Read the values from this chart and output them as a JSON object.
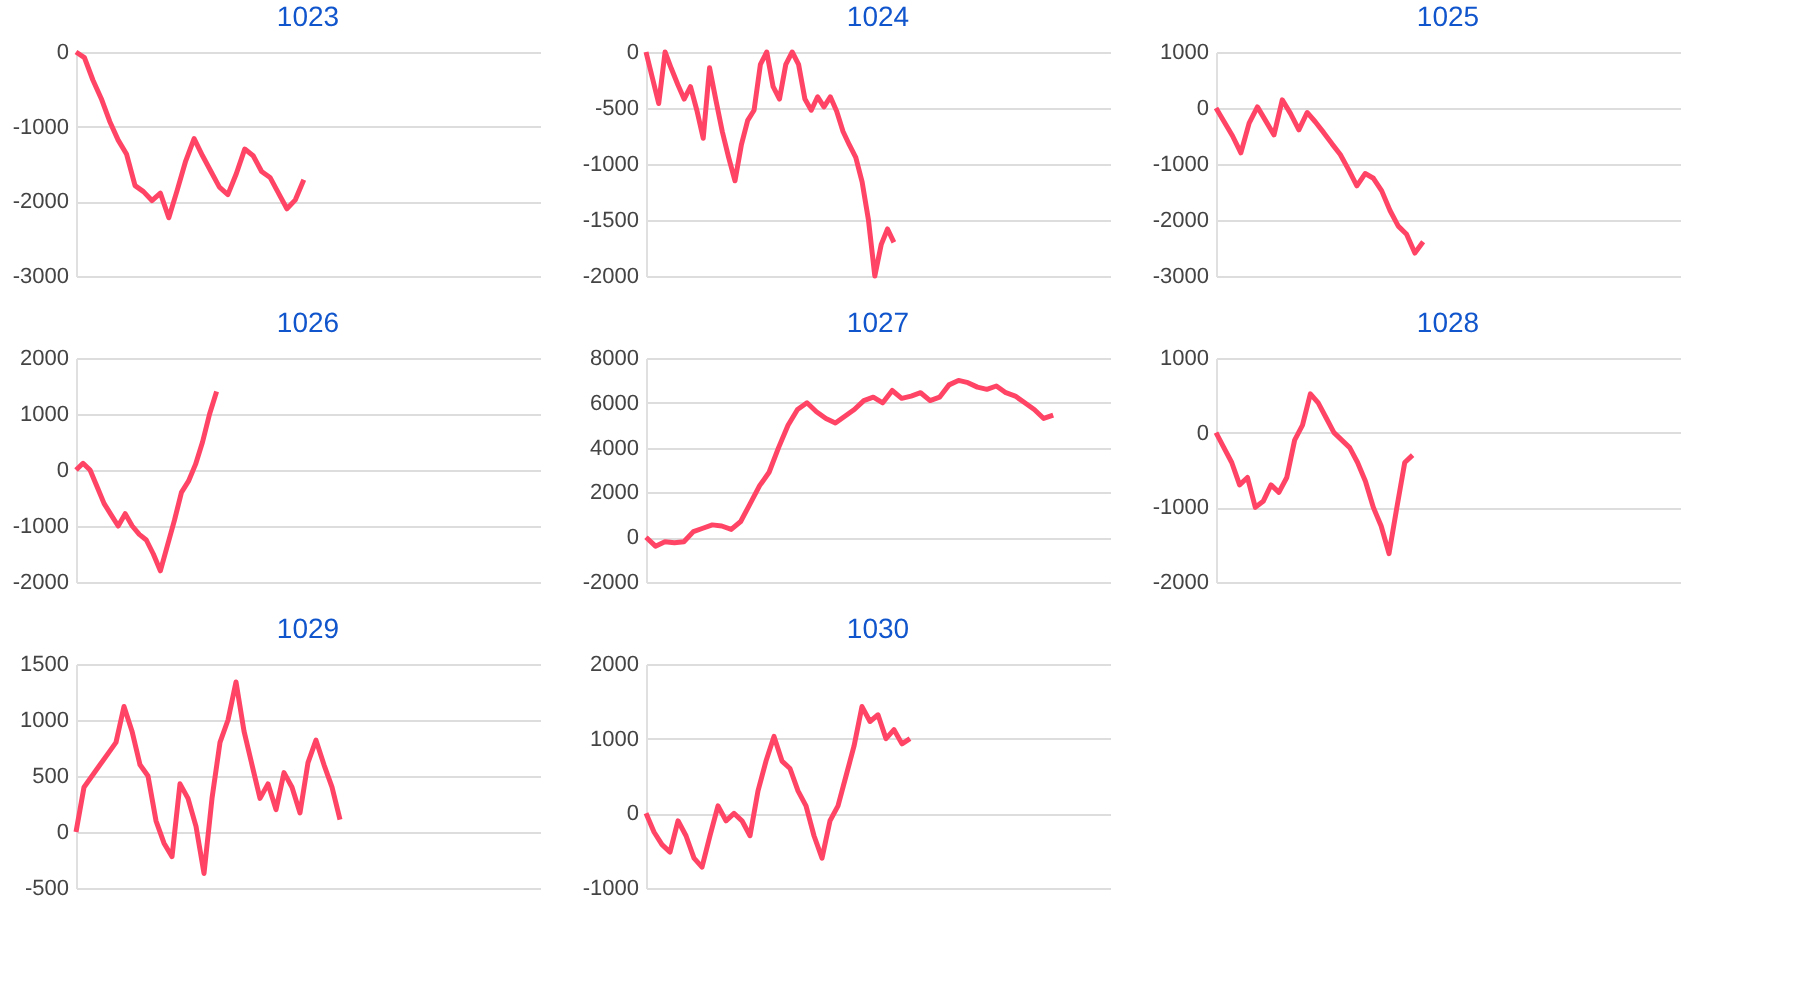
{
  "chart_data": [
    {
      "type": "line",
      "title": "1023",
      "categories": [
        null,
        null,
        null,
        null,
        null,
        null,
        null,
        null,
        null,
        null,
        null,
        null,
        null,
        null,
        null,
        null,
        null,
        null,
        null,
        null,
        null,
        null,
        null,
        null,
        null,
        null,
        null,
        null,
        null,
        null,
        null,
        null,
        null,
        null,
        null,
        null,
        null,
        null,
        null,
        null,
        null,
        null,
        null,
        null,
        null,
        null,
        null,
        null,
        null,
        null,
        null,
        null,
        null,
        null,
        null,
        null
      ],
      "series": [
        {
          "color": "#ff4466",
          "values": [
            0,
            -75,
            -375,
            -625,
            -930,
            -1180,
            -1370,
            -1790,
            -1870,
            -1990,
            -1890,
            -2220,
            -1850,
            -1460,
            -1160,
            -1390,
            -1600,
            -1810,
            -1910,
            -1630,
            -1300,
            -1390,
            -1600,
            -1680,
            -1890,
            -2100,
            -1980,
            -1710,
            null,
            null,
            null,
            null,
            null,
            null,
            null,
            null,
            null,
            null,
            null,
            null,
            null,
            null,
            null,
            null,
            null,
            null,
            null,
            null,
            null,
            null,
            null,
            null,
            null,
            null,
            null,
            null
          ]
        }
      ],
      "ylim": [
        -3000,
        0
      ],
      "yticks": [
        -3000,
        -2000,
        -1000,
        0
      ],
      "grid": "y",
      "tick_labels": "y"
    },
    {
      "type": "line",
      "title": "1024",
      "categories": [
        null,
        null,
        null,
        null,
        null,
        null,
        null,
        null,
        null,
        null,
        null,
        null,
        null,
        null,
        null,
        null,
        null,
        null,
        null,
        null,
        null,
        null,
        null,
        null,
        null,
        null,
        null,
        null,
        null,
        null,
        null,
        null,
        null,
        null,
        null,
        null,
        null,
        null,
        null,
        null,
        null,
        null,
        null,
        null,
        null,
        null,
        null,
        null,
        null,
        null,
        null,
        null,
        null,
        null,
        null,
        null,
        null,
        null,
        null,
        null,
        null,
        null,
        null,
        null,
        null,
        null,
        null,
        null,
        null,
        null,
        null,
        null,
        null,
        null
      ],
      "series": [
        {
          "color": "#ff4466",
          "values": [
            0,
            -230,
            -460,
            0,
            -150,
            -290,
            -420,
            -310,
            -520,
            -770,
            -140,
            -430,
            -710,
            -940,
            -1150,
            -830,
            -610,
            -520,
            -110,
            0,
            -310,
            -420,
            -110,
            0,
            -110,
            -420,
            -520,
            -400,
            -490,
            -400,
            -530,
            -710,
            -830,
            -940,
            -1160,
            -1500,
            -2000,
            -1720,
            -1580,
            -1700,
            null,
            null,
            null,
            null,
            null,
            null,
            null,
            null,
            null,
            null,
            null,
            null,
            null,
            null,
            null,
            null,
            null,
            null,
            null,
            null,
            null,
            null,
            null,
            null,
            null,
            null,
            null,
            null,
            null,
            null,
            null,
            null,
            null,
            null
          ]
        }
      ],
      "ylim": [
        -2000,
        0
      ],
      "yticks": [
        -2000,
        -1500,
        -1000,
        -500,
        0
      ],
      "grid": "y",
      "tick_labels": "y"
    },
    {
      "type": "line",
      "title": "1025",
      "categories": [
        null,
        null,
        null,
        null,
        null,
        null,
        null,
        null,
        null,
        null,
        null,
        null,
        null,
        null,
        null,
        null,
        null,
        null,
        null,
        null,
        null,
        null,
        null,
        null,
        null,
        null,
        null,
        null,
        null,
        null,
        null,
        null,
        null,
        null,
        null,
        null,
        null,
        null,
        null,
        null,
        null,
        null,
        null,
        null,
        null,
        null,
        null,
        null,
        null,
        null,
        null,
        null,
        null,
        null,
        null,
        null,
        null
      ],
      "series": [
        {
          "color": "#ff4466",
          "values": [
            0,
            -250,
            -500,
            -800,
            -270,
            20,
            -230,
            -480,
            145,
            -100,
            -390,
            -80,
            -250,
            -440,
            -640,
            -830,
            -1100,
            -1390,
            -1170,
            -1255,
            -1480,
            -1830,
            -2110,
            -2255,
            -2590,
            -2390,
            null,
            null,
            null,
            null,
            null,
            null,
            null,
            null,
            null,
            null,
            null,
            null,
            null,
            null,
            null,
            null,
            null,
            null,
            null,
            null,
            null,
            null,
            null,
            null,
            null,
            null,
            null,
            null,
            null,
            null,
            null
          ]
        }
      ],
      "ylim": [
        -3000,
        1000
      ],
      "yticks": [
        -3000,
        -2000,
        -1000,
        0,
        1000
      ],
      "grid": "y",
      "tick_labels": "y"
    },
    {
      "type": "line",
      "title": "1026",
      "categories": [
        null,
        null,
        null,
        null,
        null,
        null,
        null,
        null,
        null,
        null,
        null,
        null,
        null,
        null,
        null,
        null,
        null,
        null,
        null,
        null,
        null,
        null,
        null,
        null,
        null,
        null,
        null,
        null,
        null,
        null,
        null,
        null,
        null,
        null,
        null,
        null,
        null,
        null,
        null,
        null,
        null,
        null,
        null,
        null,
        null,
        null,
        null,
        null,
        null,
        null,
        null,
        null,
        null,
        null,
        null,
        null,
        null,
        null,
        null,
        null,
        null,
        null,
        null,
        null,
        null,
        null,
        null
      ],
      "series": [
        {
          "color": "#ff4466",
          "values": [
            0,
            120,
            0,
            -300,
            -600,
            -800,
            -1000,
            -780,
            -1000,
            -1150,
            -1250,
            -1500,
            -1800,
            -1350,
            -900,
            -400,
            -200,
            100,
            500,
            1000,
            1400,
            null,
            null,
            null,
            null,
            null,
            null,
            null,
            null,
            null,
            null,
            null,
            null,
            null,
            null,
            null,
            null,
            null,
            null,
            null,
            null,
            null,
            null,
            null,
            null,
            null,
            null,
            null,
            null,
            null,
            null,
            null,
            null,
            null,
            null,
            null,
            null,
            null,
            null,
            null,
            null,
            null,
            null,
            null,
            null,
            null,
            null
          ]
        }
      ],
      "ylim": [
        -2000,
        2000
      ],
      "yticks": [
        -2000,
        -1000,
        0,
        1000,
        2000
      ],
      "grid": "y",
      "tick_labels": "y"
    },
    {
      "type": "line",
      "title": "1027",
      "categories": [
        null,
        null,
        null,
        null,
        null,
        null,
        null,
        null,
        null,
        null,
        null,
        null,
        null,
        null,
        null,
        null,
        null,
        null,
        null,
        null,
        null,
        null,
        null,
        null,
        null,
        null,
        null,
        null,
        null,
        null,
        null,
        null,
        null,
        null,
        null,
        null,
        null,
        null,
        null,
        null,
        null,
        null,
        null,
        null,
        null,
        null,
        null,
        null,
        null,
        null
      ],
      "series": [
        {
          "color": "#ff4466",
          "values": [
            0,
            -400,
            -200,
            -250,
            -200,
            250,
            400,
            550,
            500,
            350,
            700,
            1500,
            2300,
            2900,
            4000,
            5000,
            5700,
            6000,
            5600,
            5300,
            5100,
            5400,
            5700,
            6100,
            6250,
            6000,
            6550,
            6200,
            6300,
            6450,
            6100,
            6250,
            6800,
            7000,
            6900,
            6700,
            6600,
            6750,
            6450,
            6300,
            6000,
            5700,
            5300,
            5450,
            null,
            null,
            null,
            null,
            null,
            null
          ]
        }
      ],
      "ylim": [
        -2000,
        8000
      ],
      "yticks": [
        -2000,
        0,
        2000,
        4000,
        6000,
        8000
      ],
      "grid": "y",
      "tick_labels": "y"
    },
    {
      "type": "line",
      "title": "1028",
      "categories": [
        null,
        null,
        null,
        null,
        null,
        null,
        null,
        null,
        null,
        null,
        null,
        null,
        null,
        null,
        null,
        null,
        null,
        null,
        null,
        null,
        null,
        null,
        null,
        null,
        null,
        null,
        null,
        null,
        null,
        null,
        null,
        null,
        null,
        null,
        null,
        null,
        null,
        null,
        null,
        null,
        null,
        null,
        null,
        null,
        null,
        null,
        null,
        null,
        null,
        null,
        null,
        null,
        null,
        null,
        null,
        null,
        null,
        null,
        null,
        null
      ],
      "series": [
        {
          "color": "#ff4466",
          "values": [
            0,
            -200,
            -400,
            -700,
            -600,
            -1000,
            -920,
            -700,
            -800,
            -600,
            -100,
            100,
            520,
            400,
            200,
            0,
            -100,
            -200,
            -400,
            -650,
            -1000,
            -1250,
            -1620,
            -1000,
            -400,
            -300,
            null,
            null,
            null,
            null,
            null,
            null,
            null,
            null,
            null,
            null,
            null,
            null,
            null,
            null,
            null,
            null,
            null,
            null,
            null,
            null,
            null,
            null,
            null,
            null,
            null,
            null,
            null,
            null,
            null,
            null,
            null,
            null,
            null,
            null
          ]
        }
      ],
      "ylim": [
        -2000,
        1000
      ],
      "yticks": [
        -2000,
        -1000,
        0,
        1000
      ],
      "grid": "y",
      "tick_labels": "y"
    },
    {
      "type": "line",
      "title": "1029",
      "categories": [
        null,
        null,
        null,
        null,
        null,
        null,
        null,
        null,
        null,
        null,
        null,
        null,
        null,
        null,
        null,
        null,
        null,
        null,
        null,
        null,
        null,
        null,
        null,
        null,
        null,
        null,
        null,
        null,
        null,
        null,
        null,
        null,
        null,
        null,
        null,
        null,
        null,
        null,
        null,
        null,
        null,
        null,
        null,
        null,
        null,
        null,
        null,
        null,
        null,
        null,
        null,
        null,
        null,
        null,
        null,
        null,
        null,
        null,
        null
      ],
      "series": [
        {
          "color": "#ff4466",
          "values": [
            0,
            400,
            500,
            600,
            700,
            800,
            1120,
            900,
            600,
            500,
            100,
            -100,
            -220,
            430,
            300,
            50,
            -370,
            300,
            800,
            1000,
            1340,
            900,
            600,
            300,
            430,
            200,
            530,
            400,
            170,
            620,
            820,
            600,
            400,
            110,
            null,
            null,
            null,
            null,
            null,
            null,
            null,
            null,
            null,
            null,
            null,
            null,
            null,
            null,
            null,
            null,
            null,
            null,
            null,
            null,
            null,
            null,
            null,
            null,
            null
          ]
        }
      ],
      "ylim": [
        -500,
        1500
      ],
      "yticks": [
        -500,
        0,
        500,
        1000,
        1500
      ],
      "grid": "y",
      "tick_labels": "y"
    },
    {
      "type": "line",
      "title": "1030",
      "categories": [
        null,
        null,
        null,
        null,
        null,
        null,
        null,
        null,
        null,
        null,
        null,
        null,
        null,
        null,
        null,
        null,
        null,
        null,
        null,
        null,
        null,
        null,
        null,
        null,
        null,
        null,
        null,
        null,
        null,
        null,
        null,
        null,
        null,
        null,
        null,
        null,
        null,
        null,
        null,
        null,
        null,
        null,
        null,
        null,
        null,
        null,
        null,
        null,
        null,
        null,
        null,
        null,
        null,
        null,
        null,
        null,
        null,
        null,
        null
      ],
      "series": [
        {
          "color": "#ff4466",
          "values": [
            0,
            -250,
            -420,
            -520,
            -100,
            -300,
            -600,
            -720,
            -300,
            100,
            -100,
            0,
            -100,
            -300,
            300,
            700,
            1030,
            700,
            600,
            300,
            100,
            -300,
            -600,
            -100,
            100,
            500,
            900,
            1430,
            1230,
            1320,
            1000,
            1120,
            930,
            1000,
            null,
            null,
            null,
            null,
            null,
            null,
            null,
            null,
            null,
            null,
            null,
            null,
            null,
            null,
            null,
            null,
            null,
            null,
            null,
            null,
            null,
            null,
            null,
            null,
            null
          ]
        }
      ],
      "ylim": [
        -1000,
        2000
      ],
      "yticks": [
        -1000,
        0,
        1000,
        2000
      ],
      "grid": "y",
      "tick_labels": "y"
    }
  ]
}
